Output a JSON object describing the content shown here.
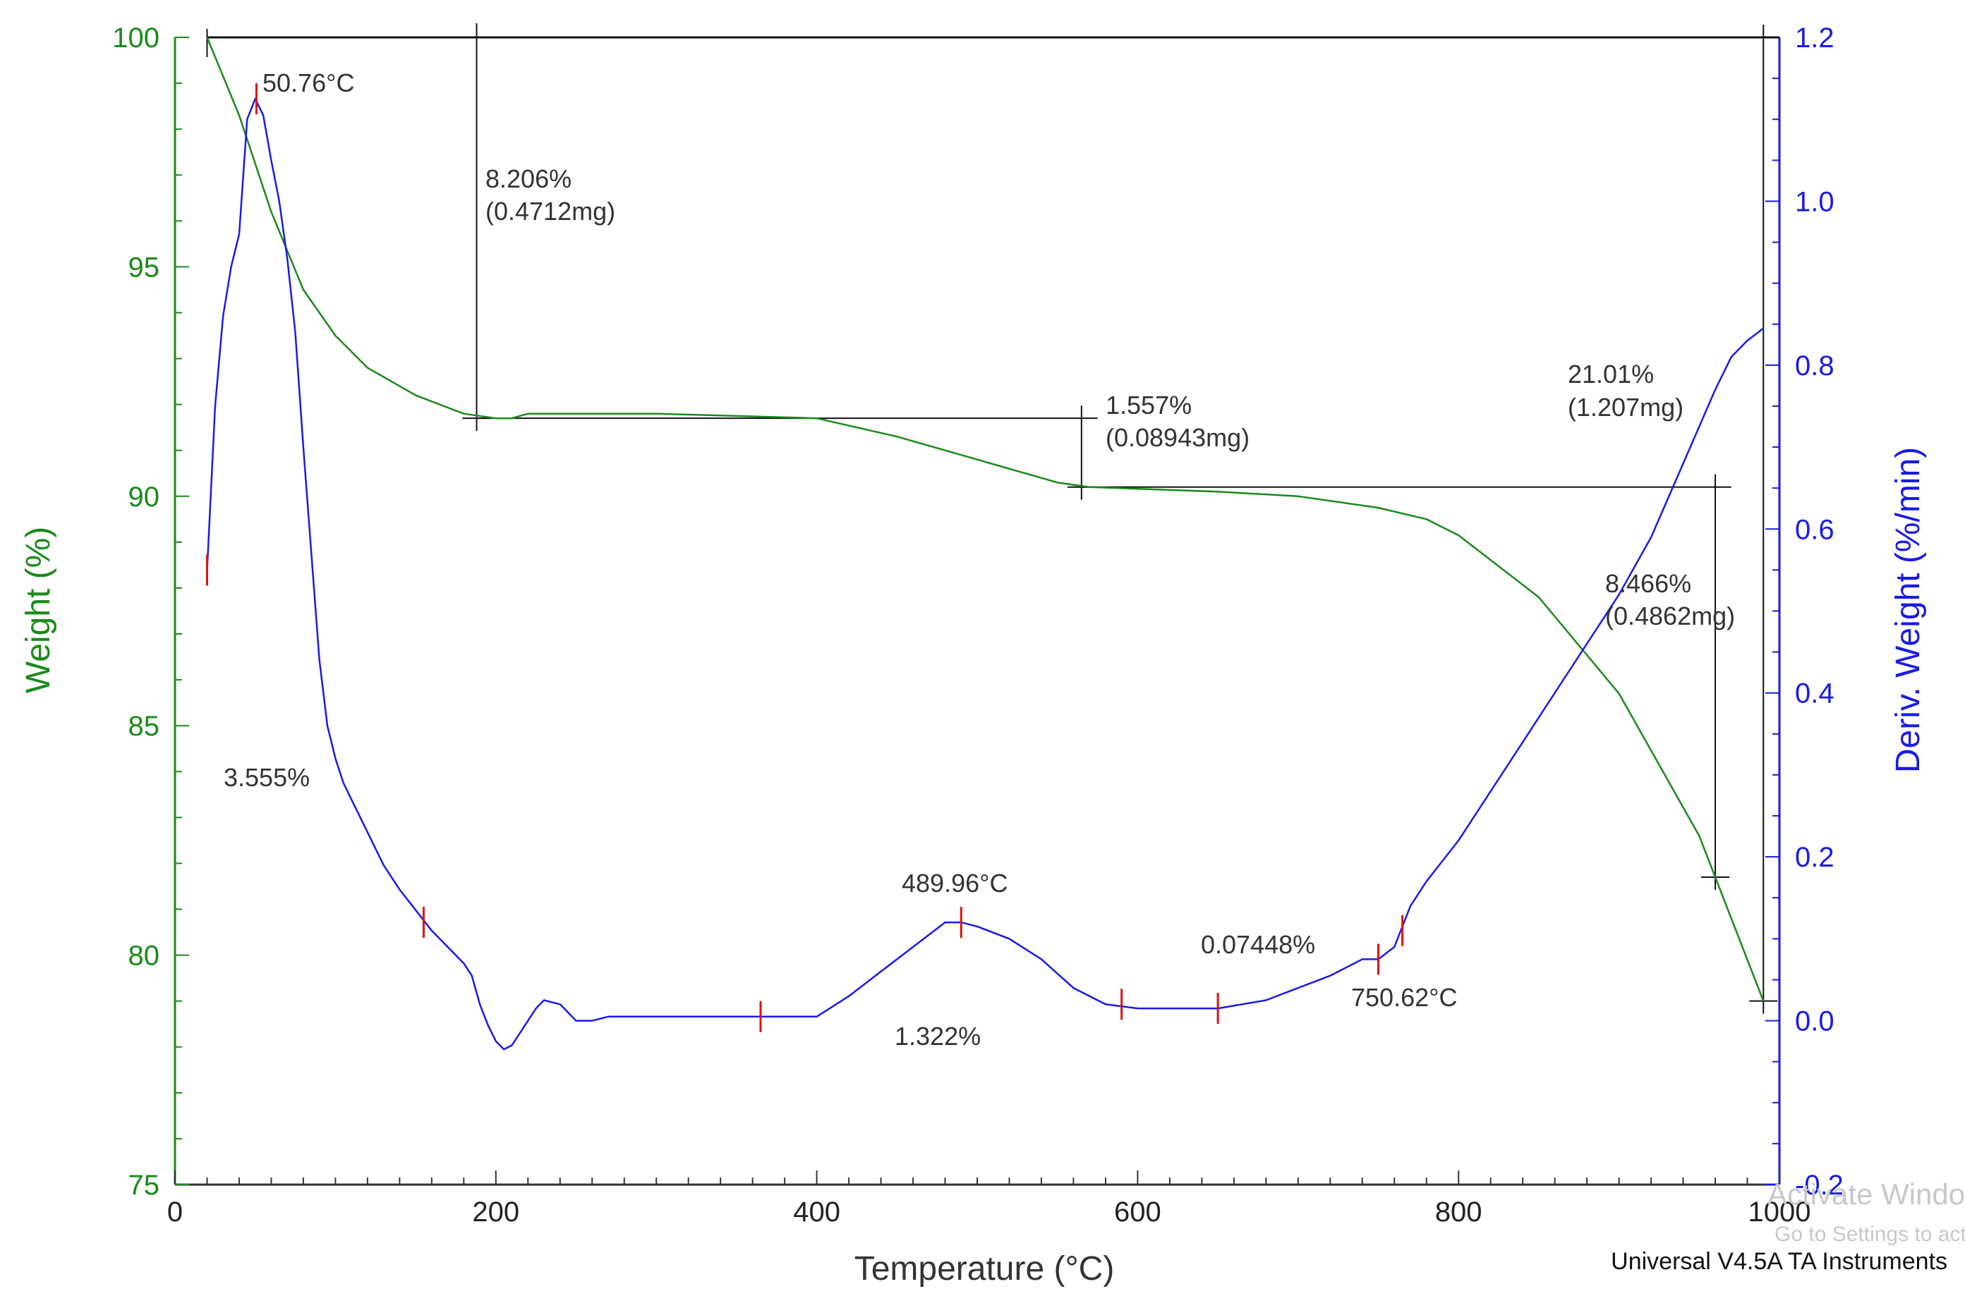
{
  "chart_data": {
    "type": "line",
    "xlabel": "Temperature (°C)",
    "ylabel_left": "Weight (%)",
    "ylabel_right": "Deriv. Weight (%/min)",
    "xlim": [
      0,
      1000
    ],
    "ylim_left": [
      75,
      100
    ],
    "ylim_right": [
      -0.2,
      1.2
    ],
    "x_ticks": [
      0,
      200,
      400,
      600,
      800,
      1000
    ],
    "y_left_ticks": [
      75,
      80,
      85,
      90,
      95,
      100
    ],
    "y_right_ticks": [
      -0.2,
      0.0,
      0.2,
      0.4,
      0.6,
      0.8,
      1.0,
      1.2
    ],
    "x_tick_labels": [
      "0",
      "200",
      "400",
      "600",
      "800",
      "1000"
    ],
    "y_left_tick_labels": [
      "75",
      "80",
      "85",
      "90",
      "95",
      "100"
    ],
    "y_right_tick_labels": [
      "-0.2",
      "0.0",
      "0.2",
      "0.4",
      "0.6",
      "0.8",
      "1.0",
      "1.2"
    ],
    "colors": {
      "weight": "#1a8a1a",
      "deriv": "#1a1ae6",
      "marker": "#e01010",
      "annotation": "#111111"
    },
    "series": [
      {
        "name": "Weight (%)",
        "axis": "left",
        "x": [
          20,
          40,
          60,
          80,
          100,
          120,
          150,
          180,
          200,
          210,
          220,
          300,
          400,
          450,
          500,
          550,
          570,
          650,
          700,
          750,
          780,
          800,
          850,
          900,
          950,
          990
        ],
        "y": [
          100,
          98.3,
          96.2,
          94.5,
          93.5,
          92.8,
          92.2,
          91.8,
          91.7,
          91.7,
          91.8,
          91.8,
          91.7,
          91.3,
          90.8,
          90.3,
          90.2,
          90.1,
          90.0,
          89.75,
          89.5,
          89.15,
          87.8,
          85.7,
          82.6,
          79.0
        ]
      },
      {
        "name": "Deriv. Weight (%/min)",
        "axis": "right",
        "x": [
          20,
          25,
          30,
          35,
          40,
          45,
          50,
          55,
          60,
          65,
          70,
          75,
          80,
          85,
          90,
          95,
          100,
          105,
          110,
          120,
          130,
          140,
          150,
          160,
          170,
          180,
          185,
          190,
          195,
          200,
          205,
          210,
          215,
          220,
          225,
          230,
          240,
          250,
          260,
          270,
          280,
          300,
          330,
          360,
          400,
          420,
          440,
          460,
          480,
          490,
          500,
          520,
          540,
          560,
          580,
          600,
          620,
          650,
          680,
          700,
          720,
          740,
          750,
          760,
          770,
          780,
          800,
          820,
          840,
          860,
          880,
          900,
          920,
          940,
          960,
          970,
          980,
          990
        ],
        "y": [
          0.55,
          0.75,
          0.86,
          0.92,
          0.96,
          1.1,
          1.125,
          1.105,
          1.05,
          1.0,
          0.93,
          0.84,
          0.7,
          0.57,
          0.44,
          0.36,
          0.32,
          0.29,
          0.27,
          0.23,
          0.19,
          0.16,
          0.135,
          0.11,
          0.09,
          0.07,
          0.055,
          0.02,
          -0.005,
          -0.025,
          -0.035,
          -0.03,
          -0.015,
          0.0,
          0.015,
          0.025,
          0.02,
          0.0,
          0.0,
          0.005,
          0.005,
          0.005,
          0.005,
          0.005,
          0.005,
          0.03,
          0.06,
          0.09,
          0.12,
          0.12,
          0.115,
          0.1,
          0.075,
          0.04,
          0.02,
          0.015,
          0.015,
          0.015,
          0.025,
          0.04,
          0.055,
          0.075,
          0.075,
          0.09,
          0.14,
          0.17,
          0.22,
          0.28,
          0.34,
          0.4,
          0.46,
          0.52,
          0.59,
          0.68,
          0.77,
          0.81,
          0.83,
          0.845
        ]
      }
    ],
    "peak_markers": [
      {
        "x": 20,
        "y": 0.55
      },
      {
        "x": 50.76,
        "y": 1.125
      },
      {
        "x": 155,
        "y": 0.12
      },
      {
        "x": 365,
        "y": 0.005
      },
      {
        "x": 490,
        "y": 0.12
      },
      {
        "x": 590,
        "y": 0.02
      },
      {
        "x": 650,
        "y": 0.015
      },
      {
        "x": 750,
        "y": 0.075
      },
      {
        "x": 765,
        "y": 0.11
      }
    ],
    "step_annotations": [
      {
        "x_from": 20,
        "x_to": 1000,
        "y_at": 100,
        "note": "top reference"
      },
      {
        "x_line": 188,
        "y_from": 91.7,
        "y_to": 100,
        "horizontal_at": 91.7,
        "h_from": 188,
        "h_to": 575
      },
      {
        "x_line": 565,
        "y_from": 90.2,
        "y_to": 91.7,
        "horizontal_at": 90.2,
        "h_from": 565,
        "h_to": 970
      },
      {
        "x_line": 960,
        "y_from": 81.7,
        "y_to": 90.2
      },
      {
        "x_line": 990,
        "y_from": 79.0,
        "y_to": 100
      }
    ],
    "labels": {
      "peak_1": "50.76°C",
      "step_1_pct": "8.206%",
      "step_1_mg": "(0.4712mg)",
      "step_2_pct": "1.557%",
      "step_2_mg": "(0.08943mg)",
      "step_3_pct": "21.01%",
      "step_3_mg": "(1.207mg)",
      "step_4_pct": "8.466%",
      "step_4_mg": "(0.4862mg)",
      "area_1": "3.555%",
      "peak_2": "489.96°C",
      "area_2": "1.322%",
      "area_3": "0.07448%",
      "peak_3": "750.62°C"
    }
  },
  "footer": {
    "software": "Universal V4.5A TA Instruments",
    "watermark_line1": "Activate Windows",
    "watermark_line2": "Go to Settings to activate Windows."
  }
}
